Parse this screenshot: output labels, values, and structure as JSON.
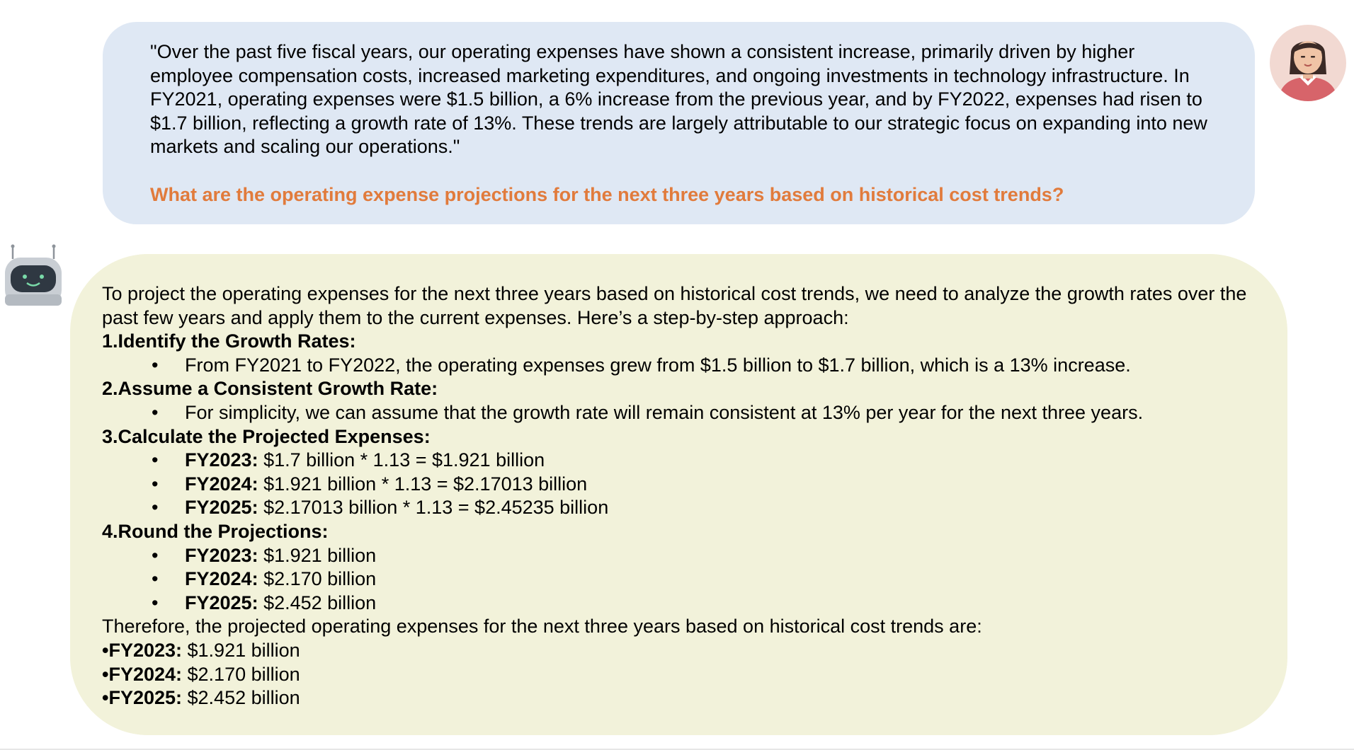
{
  "colors": {
    "user_bubble_bg": "#dfe8f4",
    "bot_bubble_bg": "#f2f2da",
    "question_text": "#e17b3c",
    "body_text": "#000000"
  },
  "user": {
    "avatar_icon": "woman-avatar-icon",
    "quote": "\"Over the past five fiscal years, our operating expenses have shown a consistent increase, primarily driven by higher employee compensation costs, increased marketing expenditures, and ongoing investments in technology infrastructure. In FY2021, operating expenses were $1.5 billion, a 6% increase from the previous year, and by FY2022, expenses had risen to $1.7 billion, reflecting a growth rate of 13%. These trends are largely attributable to our strategic focus on expanding into new markets and scaling our operations.\"",
    "question": "What are the operating expense projections for the next three years based on historical cost trends?"
  },
  "bot": {
    "avatar_icon": "robot-avatar-icon",
    "intro": "To project the operating expenses for the next three years based on historical cost trends, we need to analyze the growth rates over the past few years and apply them to the current expenses. Here’s a step-by-step approach:",
    "bullet_char": "•",
    "steps": [
      {
        "title": "1.Identify the Growth Rates:",
        "bullets": [
          {
            "label": "",
            "text": "From FY2021 to FY2022, the operating expenses grew from $1.5 billion to $1.7 billion, which is a 13% increase."
          }
        ]
      },
      {
        "title": "2.Assume a Consistent Growth Rate:",
        "bullets": [
          {
            "label": "",
            "text": "For simplicity, we can assume that the growth rate will remain consistent at 13% per year for the next three years."
          }
        ]
      },
      {
        "title": "3.Calculate the Projected Expenses:",
        "bullets": [
          {
            "label": "FY2023:",
            "text": " $1.7 billion * 1.13 = $1.921 billion"
          },
          {
            "label": "FY2024:",
            "text": " $1.921 billion * 1.13 = $2.17013 billion"
          },
          {
            "label": "FY2025:",
            "text": " $2.17013 billion * 1.13 = $2.45235 billion"
          }
        ]
      },
      {
        "title": "4.Round the Projections:",
        "bullets": [
          {
            "label": "FY2023:",
            "text": " $1.921 billion"
          },
          {
            "label": "FY2024:",
            "text": " $2.170 billion"
          },
          {
            "label": "FY2025:",
            "text": " $2.452 billion"
          }
        ]
      }
    ],
    "conclusion": "Therefore, the projected operating expenses for the next three years based on historical cost trends are:",
    "summary": [
      {
        "label": "•FY2023:",
        "text": " $1.921 billion"
      },
      {
        "label": "•FY2024:",
        "text": " $2.170 billion"
      },
      {
        "label": "•FY2025:",
        "text": " $2.452 billion"
      }
    ]
  }
}
